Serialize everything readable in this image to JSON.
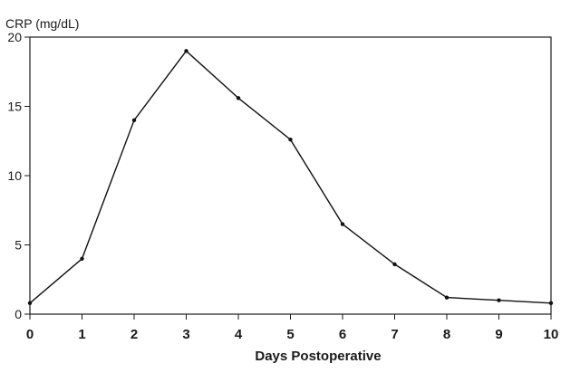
{
  "chart_data": {
    "type": "line",
    "title": "",
    "xlabel": "Days Postoperative",
    "ylabel": "CRP (mg/dL)",
    "x": [
      0,
      1,
      2,
      3,
      4,
      5,
      6,
      7,
      8,
      9,
      10
    ],
    "x_ticks": [
      "0",
      "1",
      "2",
      "3",
      "4",
      "5",
      "6",
      "7",
      "8",
      "9",
      "10"
    ],
    "y_ticks": [
      "0",
      "5",
      "10",
      "15",
      "20"
    ],
    "xlim": [
      0,
      10
    ],
    "ylim": [
      0,
      20
    ],
    "grid": false,
    "series": [
      {
        "values": [
          0.8,
          4.0,
          14.0,
          19.0,
          15.6,
          12.6,
          6.5,
          3.6,
          1.2,
          1.0,
          0.8
        ],
        "color": "#111111"
      }
    ]
  }
}
